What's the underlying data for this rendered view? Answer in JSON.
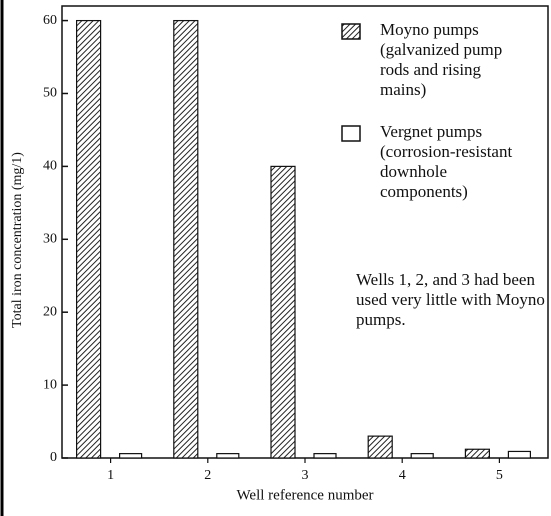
{
  "chart_data": {
    "type": "bar",
    "x_label": "Well reference number",
    "y_label": "Total iron concentration (mg/1)",
    "categories": [
      "1",
      "2",
      "3",
      "4",
      "5"
    ],
    "series": [
      {
        "name": "Moyno pumps (galvanized pump rods and rising mains)",
        "color": "hatched",
        "values": [
          60,
          60,
          40,
          3,
          1.2
        ]
      },
      {
        "name": "Vergnet pumps (corrosion-resistant downhole components)",
        "color": "#ffffff",
        "values": [
          0.6,
          0.6,
          0.6,
          0.6,
          0.9
        ]
      }
    ],
    "annotation": "Wells 1, 2, and 3 had been used very little with Moyno pumps.",
    "ylim": [
      0,
      62
    ],
    "yticks": [
      0,
      10,
      20,
      30,
      40,
      50,
      60
    ]
  }
}
